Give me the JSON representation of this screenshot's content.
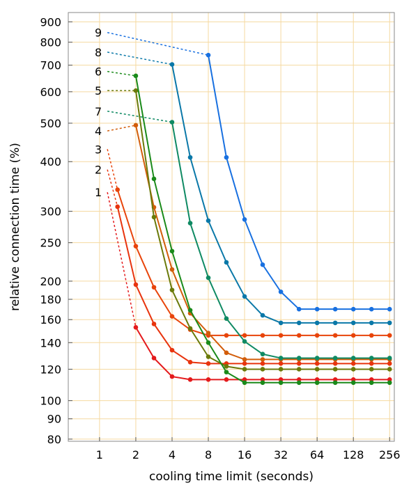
{
  "chart_data": {
    "type": "line",
    "xlabel": "cooling time limit (seconds)",
    "ylabel": "relative connection time (%)",
    "x_scale": "log2",
    "y_scale": "log",
    "xlim": [
      0.55,
      280
    ],
    "ylim": [
      79,
      950
    ],
    "x_ticks": [
      1,
      2,
      4,
      8,
      16,
      32,
      64,
      128,
      256
    ],
    "x_tick_labels": [
      "1",
      "2",
      "4",
      "8",
      "16",
      "32",
      "64",
      "128",
      "256"
    ],
    "y_ticks": [
      80,
      90,
      100,
      120,
      140,
      160,
      180,
      200,
      250,
      300,
      400,
      500,
      600,
      700,
      800,
      900
    ],
    "y_tick_labels": [
      "80",
      "90",
      "100",
      "120",
      "140",
      "160",
      "180",
      "200",
      "250",
      "300",
      "400",
      "500",
      "600",
      "700",
      "800",
      "900"
    ],
    "grid": true,
    "grid_color": "#f5d9a0",
    "series": [
      {
        "name": "1",
        "color": "#e41a1c",
        "points": [
          [
            2,
            153
          ],
          [
            2.83,
            128
          ],
          [
            4,
            115
          ],
          [
            5.66,
            113
          ],
          [
            8,
            113
          ],
          [
            11.3,
            113
          ],
          [
            16,
            113
          ],
          [
            22.6,
            113
          ],
          [
            32,
            113
          ],
          [
            45.3,
            113
          ],
          [
            64,
            113
          ],
          [
            90.5,
            113
          ],
          [
            128,
            113
          ],
          [
            181,
            113
          ],
          [
            256,
            113
          ]
        ],
        "dashed_from": [
          0.8,
          335
        ]
      },
      {
        "name": "2",
        "color": "#e8340e",
        "points": [
          [
            1.41,
            308
          ],
          [
            2,
            196
          ],
          [
            2.83,
            156
          ],
          [
            4,
            134
          ],
          [
            5.66,
            125
          ],
          [
            8,
            124
          ],
          [
            11.3,
            124
          ],
          [
            16,
            124
          ],
          [
            22.6,
            124
          ],
          [
            32,
            124
          ],
          [
            45.3,
            124
          ],
          [
            64,
            124
          ],
          [
            90.5,
            124
          ],
          [
            128,
            124
          ],
          [
            181,
            124
          ],
          [
            256,
            124
          ]
        ],
        "dashed_from": [
          0.8,
          382
        ]
      },
      {
        "name": "3",
        "color": "#e8440a",
        "points": [
          [
            1.41,
            340
          ],
          [
            2,
            245
          ],
          [
            2.83,
            193
          ],
          [
            4,
            163
          ],
          [
            5.66,
            151
          ],
          [
            8,
            146
          ],
          [
            11.3,
            146
          ],
          [
            16,
            146
          ],
          [
            22.6,
            146
          ],
          [
            32,
            146
          ],
          [
            45.3,
            146
          ],
          [
            64,
            146
          ],
          [
            90.5,
            146
          ],
          [
            128,
            146
          ],
          [
            181,
            146
          ],
          [
            256,
            146
          ]
        ],
        "dashed_from": [
          0.8,
          430
        ]
      },
      {
        "name": "4",
        "color": "#d25d0a",
        "points": [
          [
            2,
            494
          ],
          [
            2.83,
            307
          ],
          [
            4,
            214
          ],
          [
            5.66,
            166
          ],
          [
            8,
            148
          ],
          [
            11.3,
            132
          ],
          [
            16,
            127
          ],
          [
            22.6,
            127
          ],
          [
            32,
            127
          ],
          [
            45.3,
            127
          ],
          [
            64,
            127
          ],
          [
            90.5,
            127
          ],
          [
            128,
            127
          ],
          [
            181,
            127
          ],
          [
            256,
            127
          ]
        ],
        "dashed_from": [
          0.8,
          478
        ]
      },
      {
        "name": "5",
        "color": "#6a7a0a",
        "points": [
          [
            2,
            604
          ],
          [
            2.83,
            290
          ],
          [
            4,
            190
          ],
          [
            5.66,
            152
          ],
          [
            8,
            129
          ],
          [
            11.3,
            122
          ],
          [
            16,
            120
          ],
          [
            22.6,
            120
          ],
          [
            32,
            120
          ],
          [
            45.3,
            120
          ],
          [
            64,
            120
          ],
          [
            90.5,
            120
          ],
          [
            128,
            120
          ],
          [
            181,
            120
          ],
          [
            256,
            120
          ]
        ],
        "dashed_from": [
          0.8,
          604
        ]
      },
      {
        "name": "6",
        "color": "#1a8a1a",
        "points": [
          [
            2,
            658
          ],
          [
            2.83,
            362
          ],
          [
            4,
            238
          ],
          [
            5.66,
            169
          ],
          [
            8,
            140
          ],
          [
            11.3,
            118
          ],
          [
            16,
            111
          ],
          [
            22.6,
            111
          ],
          [
            32,
            111
          ],
          [
            45.3,
            111
          ],
          [
            64,
            111
          ],
          [
            90.5,
            111
          ],
          [
            128,
            111
          ],
          [
            181,
            111
          ],
          [
            256,
            111
          ]
        ],
        "dashed_from": [
          0.8,
          675
        ]
      },
      {
        "name": "7",
        "color": "#0f8a63",
        "points": [
          [
            4,
            503
          ],
          [
            5.66,
            280
          ],
          [
            8,
            204
          ],
          [
            11.3,
            161
          ],
          [
            16,
            141
          ],
          [
            22.6,
            131
          ],
          [
            32,
            128
          ],
          [
            45.3,
            128
          ],
          [
            64,
            128
          ],
          [
            90.5,
            128
          ],
          [
            128,
            128
          ],
          [
            181,
            128
          ],
          [
            256,
            128
          ]
        ],
        "dashed_from": [
          0.8,
          536
        ]
      },
      {
        "name": "8",
        "color": "#0a78a8",
        "points": [
          [
            4,
            703
          ],
          [
            5.66,
            410
          ],
          [
            8,
            284
          ],
          [
            11.3,
            223
          ],
          [
            16,
            183
          ],
          [
            22.6,
            164
          ],
          [
            32,
            157
          ],
          [
            45.3,
            157
          ],
          [
            64,
            157
          ],
          [
            90.5,
            157
          ],
          [
            128,
            157
          ],
          [
            181,
            157
          ],
          [
            256,
            157
          ]
        ],
        "dashed_from": [
          0.8,
          755
        ]
      },
      {
        "name": "9",
        "color": "#1870e0",
        "points": [
          [
            8,
            742
          ],
          [
            11.3,
            410
          ],
          [
            16,
            286
          ],
          [
            22.6,
            220
          ],
          [
            32,
            188
          ],
          [
            45.3,
            170
          ],
          [
            64,
            170
          ],
          [
            90.5,
            170
          ],
          [
            128,
            170
          ],
          [
            181,
            170
          ],
          [
            256,
            170
          ]
        ],
        "dashed_from": [
          0.8,
          846
        ]
      }
    ]
  }
}
